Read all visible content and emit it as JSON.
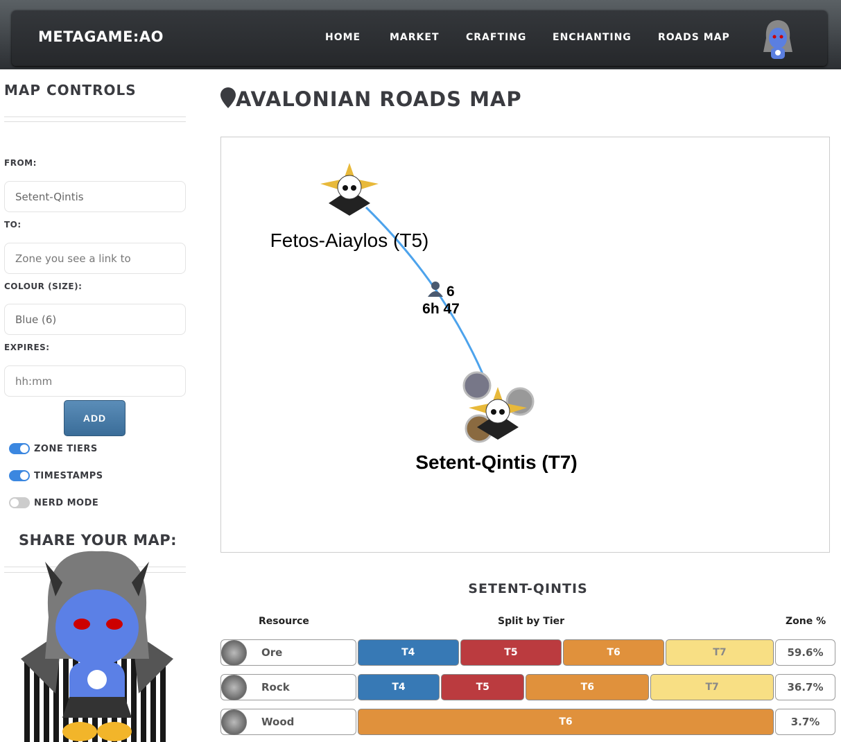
{
  "nav": {
    "brand": "METAGAME:AO",
    "links": [
      "HOME",
      "MARKET",
      "CRAFTING",
      "ENCHANTING",
      "ROADS MAP"
    ]
  },
  "sidebar": {
    "title": "MAP CONTROLS",
    "from_label": "FROM:",
    "from_value": "Setent-Qintis",
    "to_label": "TO:",
    "to_placeholder": "Zone you see a link to",
    "colour_label": "COLOUR (SIZE):",
    "colour_value": "Blue (6)",
    "expires_label": "EXPIRES:",
    "expires_placeholder": "hh:mm",
    "add_label": "ADD",
    "toggles": [
      {
        "label": "ZONE TIERS",
        "on": true
      },
      {
        "label": "TIMESTAMPS",
        "on": true
      },
      {
        "label": "NERD MODE",
        "on": false
      }
    ],
    "share_title": "SHARE YOUR MAP:"
  },
  "main": {
    "title": "AVALONIAN ROADS MAP",
    "map": {
      "nodes": [
        {
          "label": "Fetos-Aiaylos (T5)"
        },
        {
          "label": "Setent-Qintis (T7)"
        }
      ],
      "road": {
        "color": "#4da3ec",
        "size": "6",
        "time": "6h 47"
      }
    },
    "zone": {
      "title": "SETENT-QINTIS",
      "headers": {
        "resource": "Resource",
        "split": "Split by Tier",
        "pct": "Zone %"
      },
      "tier_colors": {
        "T4": "#3779b5",
        "T5": "#bb3b3f",
        "T6": "#e0913c",
        "T7": "#f8df84"
      },
      "rows": [
        {
          "name": "Ore",
          "pct": "59.6%",
          "tiers": [
            {
              "t": "T4",
              "share": 24.5
            },
            {
              "t": "T5",
              "share": 24.7
            },
            {
              "t": "T6",
              "share": 24.5
            },
            {
              "t": "T7",
              "share": 26.3
            }
          ]
        },
        {
          "name": "Rock",
          "pct": "36.7%",
          "tiers": [
            {
              "t": "T4",
              "share": 19.8
            },
            {
              "t": "T5",
              "share": 20.2
            },
            {
              "t": "T6",
              "share": 30
            },
            {
              "t": "T7",
              "share": 30
            }
          ]
        },
        {
          "name": "Wood",
          "pct": "3.7%",
          "tiers": [
            {
              "t": "T6",
              "share": 100
            }
          ]
        }
      ]
    }
  }
}
